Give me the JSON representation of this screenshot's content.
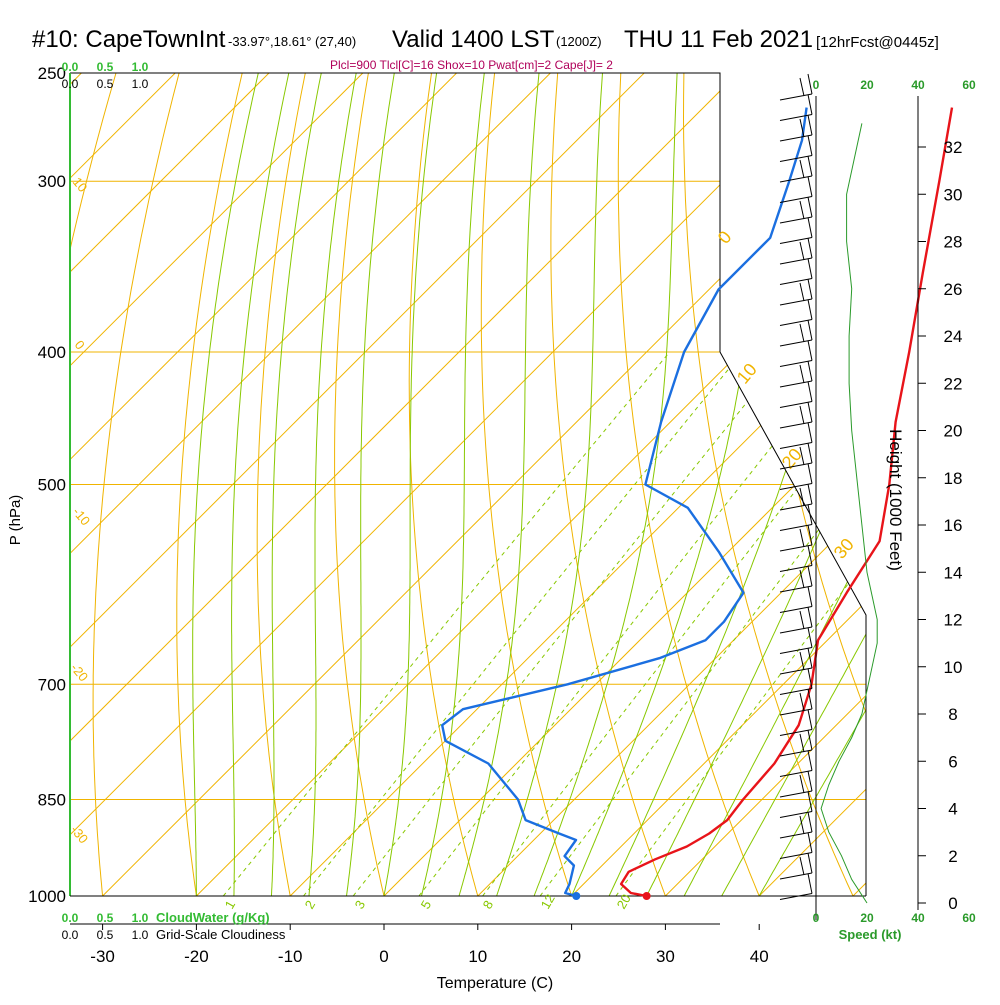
{
  "title": {
    "station": "#10: CapeTownInt",
    "coords": "-33.97°,18.61° (27,40)",
    "valid": "Valid 1400 LST",
    "zulu": "(1200Z)",
    "date": "THU 11 Feb 2021",
    "fcst": "[12hrFcst@0445z]"
  },
  "info_line": "Plcl=900 Tlcl[C]=16 Shox=10 Pwat[cm]=2 Cape[J]= 2",
  "scales": {
    "cloudwater_ticks": [
      "0.0",
      "0.5",
      "1.0"
    ],
    "cloudiness_ticks": [
      "0.0",
      "0.5",
      "1.0"
    ],
    "cloudwater_label": "CloudWater (g/Kg)",
    "cloudiness_label": "Grid-Scale Cloudiness",
    "speed_ticks": [
      "0",
      "20",
      "40",
      "60"
    ],
    "speed_label": "Speed (kt)"
  },
  "colors": {
    "temperature": "#e8141a",
    "dewpoint": "#1b6fe0",
    "isotherm": "#f0b400",
    "dry_adiabat": "#f0b400",
    "moist_adiabat": "#88c800",
    "mixing_ratio": "#88c800",
    "speed": "#2a9a2a",
    "cloudwater": "#33bb33"
  },
  "chart_data": {
    "type": "line",
    "xlabel": "Temperature (C)",
    "ylabel": "P (hPa)",
    "y2label": "Height (1000 Feet)",
    "xlim": [
      -35,
      45
    ],
    "ylim": [
      1000,
      250
    ],
    "x_ticks": [
      "-30",
      "-20",
      "-10",
      "0",
      "10",
      "20",
      "30",
      "40"
    ],
    "p_ticks": [
      "250",
      "300",
      "400",
      "500",
      "700",
      "850",
      "1000"
    ],
    "height_ticks": [
      "0",
      "2",
      "4",
      "6",
      "8",
      "10",
      "12",
      "14",
      "16",
      "18",
      "20",
      "22",
      "24",
      "26",
      "28",
      "30",
      "32"
    ],
    "isotherm_labels": [
      "10",
      "0",
      "-10",
      "-20",
      "-30",
      "0",
      "10",
      "20",
      "30"
    ],
    "mixing_ratio_labels": [
      "1",
      "2",
      "3",
      "5",
      "8",
      "12",
      "20"
    ],
    "temperature": [
      {
        "p": 1000,
        "t": 28.0
      },
      {
        "p": 995,
        "t": 26.0
      },
      {
        "p": 980,
        "t": 24.0
      },
      {
        "p": 960,
        "t": 23.5
      },
      {
        "p": 940,
        "t": 25.0
      },
      {
        "p": 920,
        "t": 27.0
      },
      {
        "p": 900,
        "t": 28.0
      },
      {
        "p": 880,
        "t": 28.5
      },
      {
        "p": 850,
        "t": 28.0
      },
      {
        "p": 800,
        "t": 27.5
      },
      {
        "p": 750,
        "t": 26.0
      },
      {
        "p": 700,
        "t": 23.0
      },
      {
        "p": 650,
        "t": 19.0
      },
      {
        "p": 600,
        "t": 17.0
      },
      {
        "p": 550,
        "t": 15.0
      },
      {
        "p": 500,
        "t": 10.0
      },
      {
        "p": 450,
        "t": 4.0
      },
      {
        "p": 400,
        "t": -2.0
      },
      {
        "p": 350,
        "t": -9.0
      },
      {
        "p": 300,
        "t": -17.0
      },
      {
        "p": 265,
        "t": -23.5
      }
    ],
    "dewpoint": [
      {
        "p": 1000,
        "t": 20.5
      },
      {
        "p": 995,
        "t": 19.0
      },
      {
        "p": 980,
        "t": 18.5
      },
      {
        "p": 950,
        "t": 17.0
      },
      {
        "p": 935,
        "t": 15.0
      },
      {
        "p": 910,
        "t": 14.5
      },
      {
        "p": 900,
        "t": 12.0
      },
      {
        "p": 880,
        "t": 7.0
      },
      {
        "p": 850,
        "t": 4.0
      },
      {
        "p": 800,
        "t": -3.0
      },
      {
        "p": 770,
        "t": -10.0
      },
      {
        "p": 750,
        "t": -12.0
      },
      {
        "p": 730,
        "t": -11.5
      },
      {
        "p": 700,
        "t": -3.0
      },
      {
        "p": 670,
        "t": 4.0
      },
      {
        "p": 650,
        "t": 7.0
      },
      {
        "p": 630,
        "t": 7.0
      },
      {
        "p": 600,
        "t": 6.0
      },
      {
        "p": 560,
        "t": -1.0
      },
      {
        "p": 520,
        "t": -9.0
      },
      {
        "p": 500,
        "t": -16.0
      },
      {
        "p": 450,
        "t": -21.0
      },
      {
        "p": 400,
        "t": -26.0
      },
      {
        "p": 360,
        "t": -29.0
      },
      {
        "p": 330,
        "t": -29.0
      },
      {
        "p": 300,
        "t": -33.0
      },
      {
        "p": 280,
        "t": -36.0
      },
      {
        "p": 265,
        "t": -39.0
      }
    ],
    "wind_speed": [
      {
        "h": 0,
        "v": 20
      },
      {
        "h": 1,
        "v": 14
      },
      {
        "h": 2,
        "v": 10
      },
      {
        "h": 3,
        "v": 5
      },
      {
        "h": 4,
        "v": 2
      },
      {
        "h": 5,
        "v": 5
      },
      {
        "h": 6,
        "v": 9
      },
      {
        "h": 7,
        "v": 14
      },
      {
        "h": 8,
        "v": 18
      },
      {
        "h": 9,
        "v": 20
      },
      {
        "h": 10,
        "v": 22
      },
      {
        "h": 11,
        "v": 24
      },
      {
        "h": 12,
        "v": 24
      },
      {
        "h": 13,
        "v": 22
      },
      {
        "h": 14,
        "v": 20
      },
      {
        "h": 16,
        "v": 18
      },
      {
        "h": 18,
        "v": 16
      },
      {
        "h": 20,
        "v": 14
      },
      {
        "h": 22,
        "v": 13
      },
      {
        "h": 24,
        "v": 13
      },
      {
        "h": 26,
        "v": 14
      },
      {
        "h": 28,
        "v": 12
      },
      {
        "h": 30,
        "v": 12
      },
      {
        "h": 32,
        "v": 16
      },
      {
        "h": 33,
        "v": 18
      }
    ]
  }
}
